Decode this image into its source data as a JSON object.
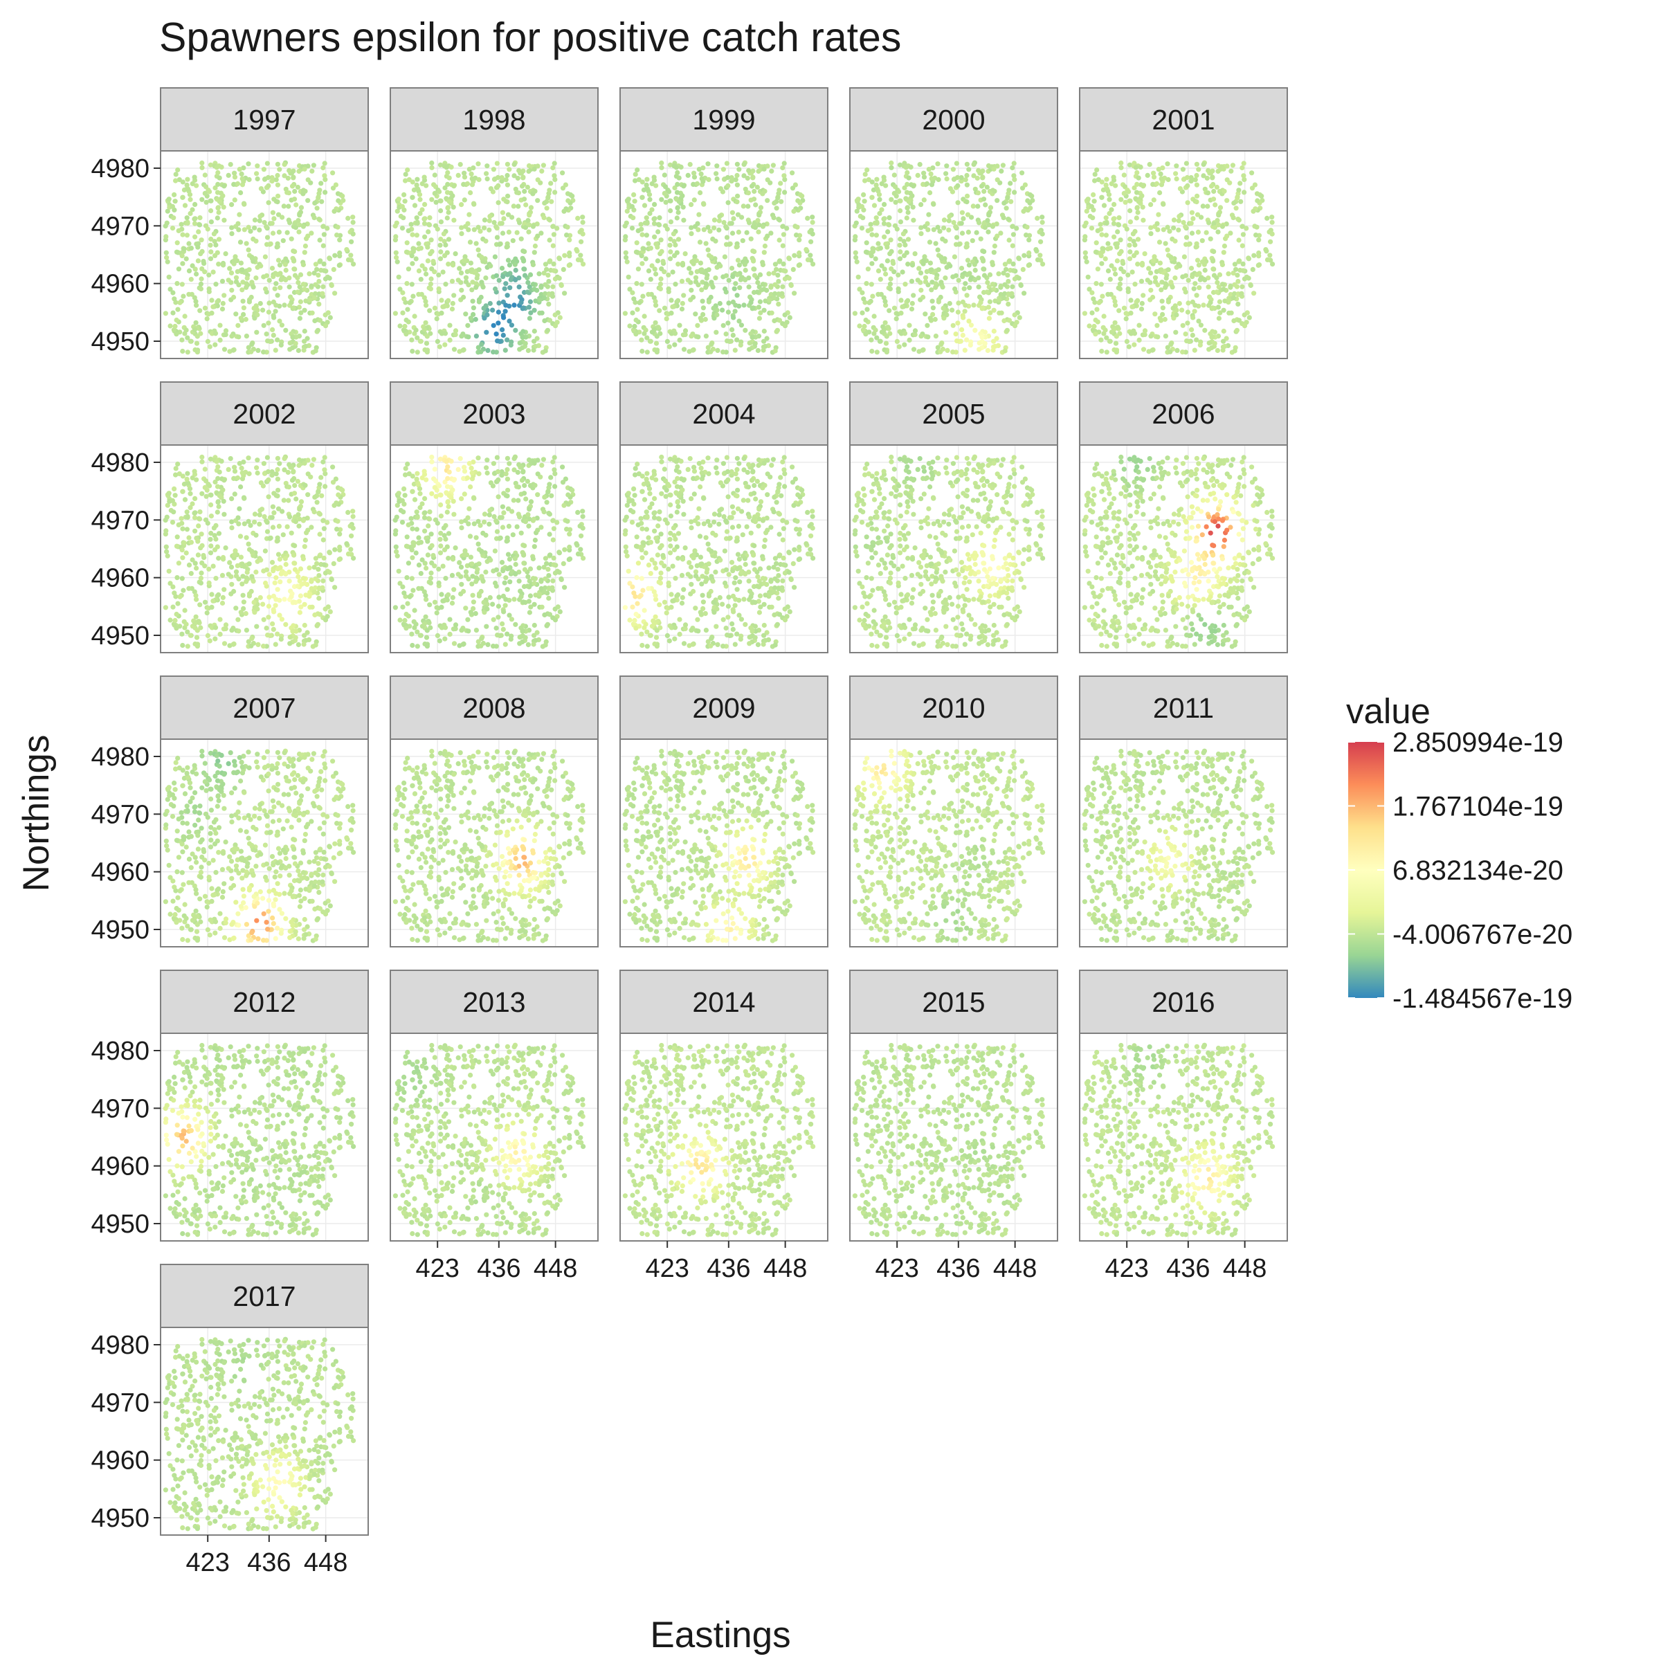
{
  "chart_data": {
    "type": "scatter",
    "title": "Spawners epsilon for positive catch rates",
    "xlabel": "Eastings",
    "ylabel": "Northings",
    "facets": [
      "1997",
      "1998",
      "1999",
      "2000",
      "2001",
      "2002",
      "2003",
      "2004",
      "2005",
      "2006",
      "2007",
      "2008",
      "2009",
      "2010",
      "2011",
      "2012",
      "2013",
      "2014",
      "2015",
      "2016",
      "2017"
    ],
    "x_ticks": [
      423,
      436,
      448
    ],
    "y_ticks": [
      4950,
      4960,
      4970,
      4980
    ],
    "xlim": [
      413,
      457
    ],
    "ylim": [
      4947,
      4983
    ],
    "grid": true,
    "legend": {
      "title": "value",
      "position": "right",
      "labels": [
        "2.850994e-19",
        "1.767104e-19",
        "6.832134e-20",
        "-4.006767e-20",
        "-1.484567e-19"
      ],
      "values": [
        2.850994e-19,
        1.767104e-19,
        6.832134e-20,
        -4.006767e-20,
        -1.484567e-19
      ],
      "colors": [
        "#d53e4f",
        "#fc8d59",
        "#fee08b",
        "#ffffbf",
        "#e6f598",
        "#99d594",
        "#3288bd"
      ]
    },
    "series_summary": [
      {
        "year": "1997",
        "hotspots": []
      },
      {
        "year": "1998",
        "hotspots": [
          {
            "x": 440,
            "y": 4957,
            "value": -1.2e-19
          },
          {
            "x": 435,
            "y": 4952,
            "value": -1.45e-19
          },
          {
            "x": 438,
            "y": 4962,
            "value": -7e-20
          }
        ]
      },
      {
        "year": "1999",
        "hotspots": [
          {
            "x": 437,
            "y": 4957,
            "value": -7e-20
          },
          {
            "x": 424,
            "y": 4974,
            "value": -5e-20
          }
        ]
      },
      {
        "year": "2000",
        "hotspots": [
          {
            "x": 437,
            "y": 4962,
            "value": -5e-20
          },
          {
            "x": 440,
            "y": 4950,
            "value": 6e-20
          }
        ]
      },
      {
        "year": "2001",
        "hotspots": [
          {
            "x": 440,
            "y": 4962,
            "value": -4e-20
          }
        ]
      },
      {
        "year": "2002",
        "hotspots": [
          {
            "x": 430,
            "y": 4973,
            "value": -5e-20
          },
          {
            "x": 440,
            "y": 4957,
            "value": 6e-20
          }
        ]
      },
      {
        "year": "2003",
        "hotspots": [
          {
            "x": 425,
            "y": 4979,
            "value": 1.2e-19
          },
          {
            "x": 438,
            "y": 4962,
            "value": -5e-20
          }
        ]
      },
      {
        "year": "2004",
        "hotspots": [
          {
            "x": 416,
            "y": 4957,
            "value": 1.3e-19
          },
          {
            "x": 438,
            "y": 4963,
            "value": -4e-20
          }
        ]
      },
      {
        "year": "2005",
        "hotspots": [
          {
            "x": 427,
            "y": 4980,
            "value": -6e-20
          },
          {
            "x": 418,
            "y": 4966,
            "value": -5e-20
          },
          {
            "x": 443,
            "y": 4962,
            "value": 7e-20
          }
        ]
      },
      {
        "year": "2006",
        "hotspots": [
          {
            "x": 442,
            "y": 4968,
            "value": 2.85e-19
          },
          {
            "x": 438,
            "y": 4960,
            "value": 1e-19
          },
          {
            "x": 440,
            "y": 4952,
            "value": -8e-20
          },
          {
            "x": 425,
            "y": 4980,
            "value": -7e-20
          }
        ]
      },
      {
        "year": "2007",
        "hotspots": [
          {
            "x": 434,
            "y": 4951,
            "value": 2.2e-19
          },
          {
            "x": 420,
            "y": 4970,
            "value": -6e-20
          },
          {
            "x": 426,
            "y": 4979,
            "value": -8e-20
          }
        ]
      },
      {
        "year": "2008",
        "hotspots": [
          {
            "x": 441,
            "y": 4962,
            "value": 1.8e-19
          }
        ]
      },
      {
        "year": "2009",
        "hotspots": [
          {
            "x": 440,
            "y": 4962,
            "value": 1.2e-19
          },
          {
            "x": 437,
            "y": 4956,
            "value": -6e-20
          },
          {
            "x": 436,
            "y": 4950,
            "value": 1e-19
          }
        ]
      },
      {
        "year": "2010",
        "hotspots": [
          {
            "x": 420,
            "y": 4978,
            "value": 1.2e-19
          },
          {
            "x": 440,
            "y": 4962,
            "value": -5e-20
          },
          {
            "x": 435,
            "y": 4952,
            "value": -6e-20
          }
        ]
      },
      {
        "year": "2011",
        "hotspots": [
          {
            "x": 432,
            "y": 4962,
            "value": 5e-20
          }
        ]
      },
      {
        "year": "2012",
        "hotspots": [
          {
            "x": 418,
            "y": 4965,
            "value": 1.7e-19
          },
          {
            "x": 438,
            "y": 4955,
            "value": -5e-20
          }
        ]
      },
      {
        "year": "2013",
        "hotspots": [
          {
            "x": 418,
            "y": 4975,
            "value": -6e-20
          },
          {
            "x": 440,
            "y": 4962,
            "value": 1e-19
          },
          {
            "x": 433,
            "y": 4954,
            "value": -5e-20
          }
        ]
      },
      {
        "year": "2014",
        "hotspots": [
          {
            "x": 430,
            "y": 4960,
            "value": 1.3e-19
          }
        ]
      },
      {
        "year": "2015",
        "hotspots": [
          {
            "x": 440,
            "y": 4963,
            "value": -5e-20
          }
        ]
      },
      {
        "year": "2016",
        "hotspots": [
          {
            "x": 427,
            "y": 4978,
            "value": -6e-20
          },
          {
            "x": 440,
            "y": 4958,
            "value": 1.2e-19
          }
        ]
      },
      {
        "year": "2017",
        "hotspots": [
          {
            "x": 430,
            "y": 4977,
            "value": -6e-20
          },
          {
            "x": 438,
            "y": 4956,
            "value": 8e-20
          }
        ]
      }
    ]
  }
}
